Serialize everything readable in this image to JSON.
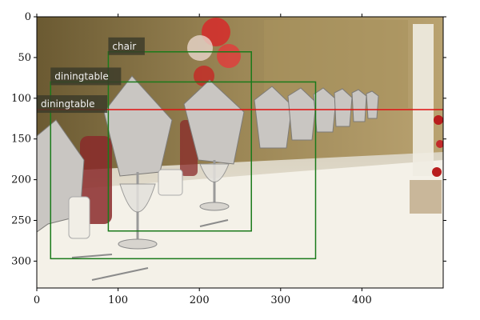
{
  "image": {
    "width": 500,
    "height": 333,
    "scene": "banquet-table-with-folded-napkins-in-wine-glasses"
  },
  "axes": {
    "xlim": [
      0,
      500
    ],
    "ylim": [
      333,
      0
    ],
    "x_ticks": [
      0,
      100,
      200,
      300,
      400
    ],
    "y_ticks": [
      0,
      50,
      100,
      150,
      200,
      250,
      300
    ],
    "x_tick_labels": [
      "0",
      "100",
      "200",
      "300",
      "400"
    ],
    "y_tick_labels": [
      "0",
      "50",
      "100",
      "150",
      "200",
      "250",
      "300"
    ]
  },
  "detections": [
    {
      "label": "chair",
      "x1": 88,
      "y1": 43,
      "x2": 264,
      "y2": 263,
      "color": "#1a7a1a"
    },
    {
      "label": "diningtable",
      "x1": 17,
      "y1": 80,
      "x2": 343,
      "y2": 297,
      "color": "#1a7a1a"
    },
    {
      "label": "diningtable",
      "x1": 0,
      "y1": 114,
      "x2": 500,
      "y2": 114,
      "color": "#e01010"
    }
  ],
  "colors": {
    "green_box": "#1a7a1a",
    "red_box": "#e01010",
    "label_bg": "#3a3a2a"
  }
}
